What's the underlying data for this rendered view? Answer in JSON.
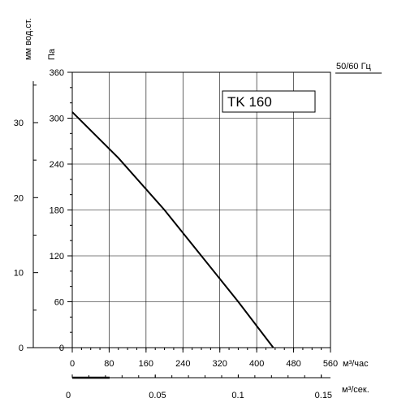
{
  "chart_data": {
    "type": "line",
    "title": "TK 160",
    "frequency_label": "50/60 Гц",
    "y_label_pa": "Па",
    "y_label_mm": "мм вод.ст.",
    "x_label_m3h": "м³/час",
    "x_label_m3s": "м³/сек.",
    "x_ticks_m3h": [
      "0",
      "80",
      "160",
      "240",
      "320",
      "400",
      "480",
      "560"
    ],
    "y_ticks_pa": [
      "0",
      "60",
      "120",
      "180",
      "240",
      "300",
      "360"
    ],
    "y_ticks_mm": [
      "0",
      "10",
      "20",
      "30"
    ],
    "x_ticks_m3s": [
      "0",
      "0.05",
      "0.1",
      "0.15"
    ],
    "xlim_m3h": [
      0,
      560
    ],
    "ylim_pa": [
      0,
      360
    ],
    "grid": true,
    "series": [
      {
        "x": [
          0,
          100,
          200,
          280,
          360,
          436
        ],
        "y": [
          308,
          248,
          180,
          120,
          60,
          0
        ]
      }
    ]
  }
}
